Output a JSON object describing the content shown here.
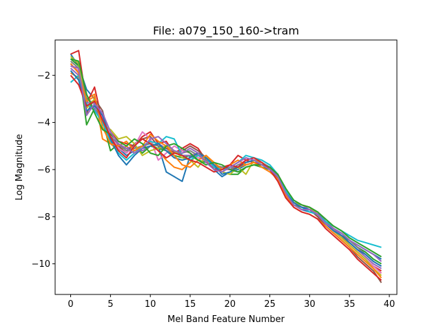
{
  "chart_data": {
    "type": "line",
    "title": "File: a079_150_160->tram",
    "xlabel": "Mel Band Feature Number",
    "ylabel": "Log Magnitude",
    "xlim": [
      -1.95,
      40.95
    ],
    "ylim": [
      -11.3,
      -0.5
    ],
    "xticks": [
      0,
      5,
      10,
      15,
      20,
      25,
      30,
      35,
      40
    ],
    "yticks": [
      -10,
      -8,
      -6,
      -4,
      -2
    ],
    "xtick_labels": [
      "0",
      "5",
      "10",
      "15",
      "20",
      "25",
      "30",
      "35",
      "40"
    ],
    "ytick_labels": [
      "−10",
      "−8",
      "−6",
      "−4",
      "−2"
    ],
    "grid": false,
    "colors": [
      "#1f77b4",
      "#ff7f0e",
      "#2ca02c",
      "#d62728",
      "#9467bd",
      "#8c564b",
      "#e377c2",
      "#7f7f7f",
      "#bcbd22",
      "#17becf"
    ],
    "x": [
      0,
      1,
      2,
      3,
      4,
      5,
      6,
      7,
      8,
      9,
      10,
      11,
      12,
      13,
      14,
      15,
      16,
      17,
      18,
      19,
      20,
      21,
      22,
      23,
      24,
      25,
      26,
      27,
      28,
      29,
      30,
      31,
      32,
      33,
      34,
      35,
      36,
      37,
      38,
      39
    ],
    "series": [
      {
        "values": [
          -1.1,
          -1.6,
          -2.6,
          -3.0,
          -3.9,
          -4.6,
          -5.1,
          -5.4,
          -5.2,
          -5.0,
          -4.9,
          -5.0,
          -6.1,
          -6.3,
          -6.5,
          -5.4,
          -5.4,
          -5.6,
          -6.0,
          -6.3,
          -6.1,
          -6.0,
          -5.8,
          -5.7,
          -5.8,
          -6.0,
          -6.4,
          -7.2,
          -7.5,
          -7.7,
          -7.8,
          -7.9,
          -8.2,
          -8.6,
          -8.8,
          -9.0,
          -9.2,
          -9.4,
          -9.6,
          -9.8
        ]
      },
      {
        "values": [
          -1.9,
          -2.1,
          -3.0,
          -2.8,
          -4.7,
          -4.9,
          -5.2,
          -5.0,
          -5.3,
          -5.1,
          -4.8,
          -5.2,
          -5.6,
          -5.9,
          -6.0,
          -5.7,
          -5.3,
          -5.5,
          -5.9,
          -6.0,
          -5.9,
          -5.9,
          -5.8,
          -5.7,
          -5.8,
          -5.9,
          -6.3,
          -7.0,
          -7.4,
          -7.6,
          -7.7,
          -8.0,
          -8.3,
          -8.6,
          -8.8,
          -9.2,
          -9.5,
          -9.8,
          -10.1,
          -10.4
        ]
      },
      {
        "values": [
          -1.3,
          -1.6,
          -4.1,
          -3.4,
          -3.9,
          -5.2,
          -4.9,
          -5.2,
          -5.0,
          -5.3,
          -5.0,
          -5.1,
          -5.2,
          -5.4,
          -5.5,
          -5.4,
          -5.6,
          -5.7,
          -5.9,
          -6.1,
          -6.2,
          -6.2,
          -5.9,
          -5.8,
          -5.9,
          -6.0,
          -6.3,
          -7.0,
          -7.5,
          -7.6,
          -7.7,
          -7.9,
          -8.2,
          -8.5,
          -8.8,
          -9.0,
          -9.3,
          -9.5,
          -9.8,
          -10.0
        ]
      },
      {
        "values": [
          -1.1,
          -0.95,
          -3.2,
          -2.5,
          -4.0,
          -4.4,
          -4.8,
          -4.9,
          -5.0,
          -4.6,
          -4.4,
          -4.9,
          -4.8,
          -5.3,
          -5.1,
          -4.9,
          -5.1,
          -5.6,
          -6.0,
          -5.9,
          -5.8,
          -5.4,
          -5.6,
          -5.7,
          -5.8,
          -5.9,
          -6.2,
          -6.9,
          -7.4,
          -7.5,
          -7.6,
          -7.9,
          -8.2,
          -8.6,
          -8.9,
          -9.2,
          -9.5,
          -9.8,
          -10.1,
          -10.3
        ]
      },
      {
        "values": [
          -1.7,
          -2.0,
          -3.1,
          -3.4,
          -4.0,
          -4.6,
          -5.0,
          -5.1,
          -5.0,
          -5.2,
          -5.0,
          -4.9,
          -5.1,
          -5.2,
          -5.4,
          -5.4,
          -5.3,
          -5.5,
          -5.8,
          -5.9,
          -5.9,
          -5.9,
          -5.7,
          -5.6,
          -5.7,
          -5.9,
          -6.3,
          -7.0,
          -7.4,
          -7.6,
          -7.6,
          -7.9,
          -8.3,
          -8.5,
          -8.8,
          -9.1,
          -9.4,
          -9.7,
          -10.0,
          -10.2
        ]
      },
      {
        "values": [
          -1.5,
          -1.9,
          -3.6,
          -3.0,
          -3.5,
          -4.8,
          -5.0,
          -5.3,
          -4.9,
          -4.7,
          -4.6,
          -5.0,
          -5.1,
          -5.3,
          -5.2,
          -5.0,
          -5.2,
          -5.5,
          -5.8,
          -6.0,
          -6.0,
          -5.9,
          -5.7,
          -5.6,
          -5.7,
          -6.0,
          -6.4,
          -7.1,
          -7.5,
          -7.7,
          -7.7,
          -8.0,
          -8.4,
          -8.7,
          -9.0,
          -9.3,
          -9.7,
          -10.0,
          -10.3,
          -10.8
        ]
      },
      {
        "values": [
          -1.6,
          -1.8,
          -3.3,
          -3.1,
          -3.8,
          -4.5,
          -5.1,
          -5.3,
          -5.0,
          -4.4,
          -4.7,
          -5.6,
          -5.3,
          -5.0,
          -5.2,
          -5.3,
          -5.5,
          -5.6,
          -5.9,
          -6.0,
          -6.0,
          -5.8,
          -5.6,
          -5.5,
          -5.7,
          -5.9,
          -6.2,
          -6.9,
          -7.4,
          -7.6,
          -7.7,
          -7.8,
          -8.2,
          -8.6,
          -8.9,
          -9.2,
          -9.5,
          -9.8,
          -10.1,
          -10.4
        ]
      },
      {
        "values": [
          -1.4,
          -1.7,
          -3.0,
          -3.2,
          -3.9,
          -4.6,
          -4.9,
          -5.2,
          -5.1,
          -5.0,
          -4.9,
          -5.0,
          -5.2,
          -5.3,
          -5.3,
          -5.2,
          -5.4,
          -5.6,
          -5.8,
          -5.9,
          -6.0,
          -5.8,
          -5.7,
          -5.6,
          -5.7,
          -5.9,
          -6.2,
          -6.9,
          -7.3,
          -7.5,
          -7.6,
          -7.8,
          -8.2,
          -8.5,
          -8.7,
          -9.0,
          -9.3,
          -9.6,
          -9.9,
          -10.1
        ]
      },
      {
        "values": [
          -1.2,
          -1.5,
          -3.4,
          -3.0,
          -4.1,
          -4.3,
          -4.7,
          -4.6,
          -4.9,
          -5.4,
          -5.2,
          -5.1,
          -5.0,
          -5.2,
          -5.5,
          -5.6,
          -5.9,
          -5.4,
          -5.8,
          -6.1,
          -6.2,
          -5.9,
          -6.2,
          -5.6,
          -5.7,
          -6.0,
          -6.3,
          -6.9,
          -7.4,
          -7.5,
          -7.6,
          -7.9,
          -8.3,
          -8.6,
          -8.9,
          -9.2,
          -9.5,
          -9.8,
          -10.2,
          -10.5
        ]
      },
      {
        "values": [
          -2.3,
          -2.0,
          -3.2,
          -3.5,
          -4.0,
          -4.8,
          -5.3,
          -5.6,
          -5.3,
          -5.0,
          -4.8,
          -4.9,
          -4.6,
          -4.7,
          -5.4,
          -5.6,
          -5.4,
          -5.5,
          -5.9,
          -6.0,
          -5.9,
          -5.7,
          -5.4,
          -5.5,
          -5.6,
          -5.8,
          -6.2,
          -6.9,
          -7.4,
          -7.6,
          -7.8,
          -7.9,
          -8.2,
          -8.4,
          -8.6,
          -8.8,
          -9.0,
          -9.1,
          -9.2,
          -9.3
        ]
      },
      {
        "values": [
          -1.8,
          -2.2,
          -3.5,
          -3.3,
          -3.7,
          -4.7,
          -5.4,
          -5.8,
          -5.4,
          -5.1,
          -5.0,
          -4.9,
          -5.2,
          -5.5,
          -5.6,
          -5.5,
          -5.3,
          -5.5,
          -5.8,
          -6.2,
          -6.1,
          -5.9,
          -5.7,
          -5.6,
          -5.8,
          -6.0,
          -6.3,
          -7.0,
          -7.4,
          -7.6,
          -7.7,
          -7.9,
          -8.3,
          -8.6,
          -8.8,
          -9.1,
          -9.4,
          -9.6,
          -9.9,
          -10.1
        ]
      },
      {
        "values": [
          -1.5,
          -1.9,
          -3.1,
          -2.9,
          -4.2,
          -4.9,
          -5.0,
          -4.8,
          -5.2,
          -5.0,
          -4.5,
          -4.8,
          -5.0,
          -5.4,
          -5.8,
          -5.9,
          -5.6,
          -5.4,
          -5.7,
          -6.0,
          -5.8,
          -5.6,
          -5.8,
          -5.7,
          -5.9,
          -6.1,
          -6.4,
          -7.1,
          -7.6,
          -7.8,
          -7.9,
          -8.1,
          -8.4,
          -8.7,
          -9.0,
          -9.3,
          -9.6,
          -9.9,
          -10.2,
          -10.6
        ]
      },
      {
        "values": [
          -1.3,
          -1.4,
          -2.8,
          -3.6,
          -4.3,
          -4.5,
          -4.8,
          -5.0,
          -4.7,
          -4.9,
          -5.3,
          -5.4,
          -5.0,
          -4.9,
          -5.1,
          -5.3,
          -5.6,
          -5.8,
          -5.7,
          -5.8,
          -6.0,
          -6.1,
          -5.9,
          -5.8,
          -5.8,
          -5.9,
          -6.2,
          -6.8,
          -7.3,
          -7.5,
          -7.6,
          -7.8,
          -8.1,
          -8.4,
          -8.6,
          -8.9,
          -9.1,
          -9.3,
          -9.5,
          -9.7
        ]
      },
      {
        "values": [
          -2.0,
          -2.4,
          -3.3,
          -3.1,
          -3.9,
          -4.6,
          -5.2,
          -5.5,
          -5.0,
          -4.7,
          -4.9,
          -5.2,
          -5.5,
          -5.3,
          -5.4,
          -5.6,
          -5.7,
          -5.9,
          -6.1,
          -6.0,
          -5.8,
          -5.9,
          -5.6,
          -5.5,
          -5.7,
          -6.0,
          -6.5,
          -7.2,
          -7.6,
          -7.8,
          -7.9,
          -8.1,
          -8.5,
          -8.8,
          -9.1,
          -9.4,
          -9.8,
          -10.1,
          -10.4,
          -10.7
        ]
      },
      {
        "values": [
          -1.6,
          -1.7,
          -3.7,
          -3.2,
          -3.6,
          -4.4,
          -4.9,
          -5.1,
          -5.3,
          -5.1,
          -4.7,
          -4.6,
          -4.9,
          -5.2,
          -5.3,
          -5.1,
          -5.3,
          -5.7,
          -6.0,
          -6.1,
          -5.9,
          -5.7,
          -5.5,
          -5.6,
          -5.8,
          -6.0,
          -6.3,
          -7.0,
          -7.5,
          -7.7,
          -7.7,
          -7.9,
          -8.3,
          -8.5,
          -8.7,
          -9.0,
          -9.2,
          -9.4,
          -9.6,
          -9.9
        ]
      }
    ]
  }
}
